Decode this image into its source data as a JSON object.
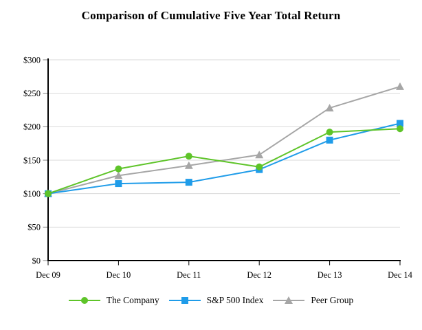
{
  "title": "Comparison of Cumulative Five Year Total Return",
  "chart_data": {
    "type": "line",
    "title": "Comparison of Cumulative Five Year Total Return",
    "categories": [
      "Dec 09",
      "Dec 10",
      "Dec 11",
      "Dec 12",
      "Dec 13",
      "Dec 14"
    ],
    "series": [
      {
        "name": "The Company",
        "marker": "circle",
        "color": "#5EC429",
        "values": [
          100,
          137,
          156,
          140,
          192,
          197
        ]
      },
      {
        "name": "S&P 500 Index",
        "marker": "square",
        "color": "#1F9CE9",
        "values": [
          100,
          115,
          117,
          136,
          180,
          205
        ]
      },
      {
        "name": "Peer Group",
        "marker": "triangle",
        "color": "#A6A6A6",
        "values": [
          100,
          127,
          142,
          158,
          228,
          260
        ]
      }
    ],
    "xlabel": "",
    "ylabel": "",
    "ylim": [
      0,
      300
    ],
    "ytick_step": 50,
    "ytick_labels": [
      "$0",
      "$50",
      "$100",
      "$150",
      "$200",
      "$250",
      "$300"
    ],
    "grid": "horizontal",
    "legend_position": "bottom",
    "colors": {
      "gridline": "#D9D9D9",
      "axis": "#000000",
      "tick": "#808080",
      "text": "#000000",
      "background": "#FFFFFF"
    }
  }
}
